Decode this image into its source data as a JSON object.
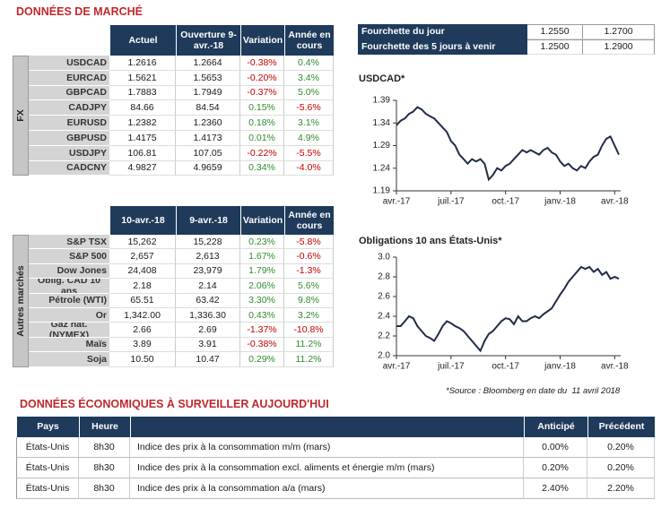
{
  "header": {
    "title": "DONNÉES DE MARCHÉ"
  },
  "fx": {
    "label": "FX",
    "columns": [
      "Actuel",
      "Ouverture 9-avr.-18",
      "Variation",
      "Année en cours"
    ],
    "rows": [
      [
        "USDCAD",
        "1.2616",
        "1.2664",
        "-0.38%",
        "0.4%"
      ],
      [
        "EURCAD",
        "1.5621",
        "1.5653",
        "-0.20%",
        "3.4%"
      ],
      [
        "GBPCAD",
        "1.7883",
        "1.7949",
        "-0.37%",
        "5.0%"
      ],
      [
        "CADJPY",
        "84.66",
        "84.54",
        "0.15%",
        "-5.6%"
      ],
      [
        "EURUSD",
        "1.2382",
        "1.2360",
        "0.18%",
        "3.1%"
      ],
      [
        "GBPUSD",
        "1.4175",
        "1.4173",
        "0.01%",
        "4.9%"
      ],
      [
        "USDJPY",
        "106.81",
        "107.05",
        "-0.22%",
        "-5.5%"
      ],
      [
        "CADCNY",
        "4.9827",
        "4.9659",
        "0.34%",
        "-4.0%"
      ]
    ]
  },
  "markets": {
    "label": "Autres marchés",
    "columns": [
      "10-avr.-18",
      "9-avr.-18",
      "Variation",
      "Année en cours"
    ],
    "rows": [
      [
        "S&P TSX",
        "15,262",
        "15,228",
        "0.23%",
        "-5.8%"
      ],
      [
        "S&P 500",
        "2,657",
        "2,613",
        "1.67%",
        "-0.6%"
      ],
      [
        "Dow Jones",
        "24,408",
        "23,979",
        "1.79%",
        "-1.3%"
      ],
      [
        "Oblig. CAD 10 ans",
        "2.18",
        "2.14",
        "2.06%",
        "5.6%"
      ],
      [
        "Pétrole (WTI)",
        "65.51",
        "63.42",
        "3.30%",
        "9.8%"
      ],
      [
        "Or",
        "1,342.00",
        "1,336.30",
        "0.43%",
        "3.2%"
      ],
      [
        "Gaz nat. (NYMEX)",
        "2.66",
        "2.69",
        "-1.37%",
        "-10.8%"
      ],
      [
        "Maïs",
        "3.89",
        "3.91",
        "-0.38%",
        "11.2%"
      ],
      [
        "Soja",
        "10.50",
        "10.47",
        "0.29%",
        "11.2%"
      ]
    ]
  },
  "range": {
    "rows": [
      [
        "Fourchette du jour",
        "1.2550",
        "1.2700"
      ],
      [
        "Fourchette des 5 jours à venir",
        "1.2500",
        "1.2900"
      ]
    ]
  },
  "chart_data": [
    {
      "type": "line",
      "title": "USDCAD*",
      "color": "#1f2d45",
      "categories": [
        "avr.-17",
        null,
        null,
        null,
        null,
        null,
        null,
        null,
        null,
        null,
        null,
        null,
        null,
        "juil.-17",
        null,
        null,
        null,
        null,
        null,
        null,
        null,
        null,
        null,
        null,
        null,
        null,
        "oct.-17",
        null,
        null,
        null,
        null,
        null,
        null,
        null,
        null,
        null,
        null,
        null,
        null,
        "janv.-18",
        null,
        null,
        null,
        null,
        null,
        null,
        null,
        null,
        null,
        null,
        null,
        null,
        "avr.-18",
        null
      ],
      "values": [
        1.335,
        1.345,
        1.35,
        1.36,
        1.365,
        1.375,
        1.37,
        1.36,
        1.355,
        1.35,
        1.34,
        1.33,
        1.32,
        1.3,
        1.29,
        1.27,
        1.26,
        1.25,
        1.26,
        1.255,
        1.26,
        1.25,
        1.215,
        1.225,
        1.24,
        1.235,
        1.245,
        1.25,
        1.26,
        1.27,
        1.28,
        1.275,
        1.28,
        1.275,
        1.27,
        1.28,
        1.285,
        1.275,
        1.27,
        1.255,
        1.245,
        1.25,
        1.24,
        1.235,
        1.245,
        1.24,
        1.255,
        1.265,
        1.27,
        1.29,
        1.305,
        1.31,
        1.29,
        1.27
      ],
      "ylim": [
        1.19,
        1.39
      ],
      "yticks": [
        1.19,
        1.24,
        1.29,
        1.34,
        1.39
      ]
    },
    {
      "type": "line",
      "title": "Obligations 10 ans États-Unis*",
      "color": "#1f2d45",
      "categories": [
        "avr.-17",
        null,
        null,
        null,
        null,
        null,
        null,
        null,
        null,
        null,
        null,
        null,
        null,
        "juil.-17",
        null,
        null,
        null,
        null,
        null,
        null,
        null,
        null,
        null,
        null,
        null,
        null,
        "oct.-17",
        null,
        null,
        null,
        null,
        null,
        null,
        null,
        null,
        null,
        null,
        null,
        null,
        "janv.-18",
        null,
        null,
        null,
        null,
        null,
        null,
        null,
        null,
        null,
        null,
        null,
        null,
        "avr.-18",
        null
      ],
      "values": [
        2.3,
        2.3,
        2.35,
        2.4,
        2.38,
        2.3,
        2.25,
        2.2,
        2.18,
        2.15,
        2.22,
        2.3,
        2.35,
        2.33,
        2.3,
        2.28,
        2.25,
        2.2,
        2.15,
        2.1,
        2.05,
        2.15,
        2.22,
        2.25,
        2.3,
        2.35,
        2.38,
        2.37,
        2.32,
        2.4,
        2.35,
        2.35,
        2.38,
        2.4,
        2.38,
        2.42,
        2.45,
        2.48,
        2.55,
        2.62,
        2.68,
        2.75,
        2.8,
        2.85,
        2.9,
        2.88,
        2.9,
        2.85,
        2.88,
        2.82,
        2.85,
        2.78,
        2.8,
        2.78
      ],
      "ylim": [
        2.0,
        3.0
      ],
      "yticks": [
        {
          "value": 2.0,
          "label": "2.0"
        },
        2.2,
        2.4,
        2.6,
        2.8,
        {
          "value": 3.0,
          "label": "3.0"
        }
      ]
    }
  ],
  "source": "*Source : Bloomberg en date du  11 avril 2018",
  "eco": {
    "title": "DONNÉES ÉCONOMIQUES À SURVEILLER AUJOURD'HUI",
    "headers": {
      "country": "Pays",
      "time": "Heure",
      "expected": "Anticipé",
      "previous": "Précédent"
    },
    "rows": [
      [
        "États-Unis",
        "8h30",
        "Indice des prix à la consommation m/m (mars)",
        "0.00%",
        "0.20%"
      ],
      [
        "États-Unis",
        "8h30",
        "Indice des prix à la consommation excl. aliments et énergie m/m (mars)",
        "0.20%",
        "0.20%"
      ],
      [
        "États-Unis",
        "8h30",
        "Indice des prix à la consommation a/a (mars)",
        "2.40%",
        "2.20%"
      ]
    ]
  }
}
